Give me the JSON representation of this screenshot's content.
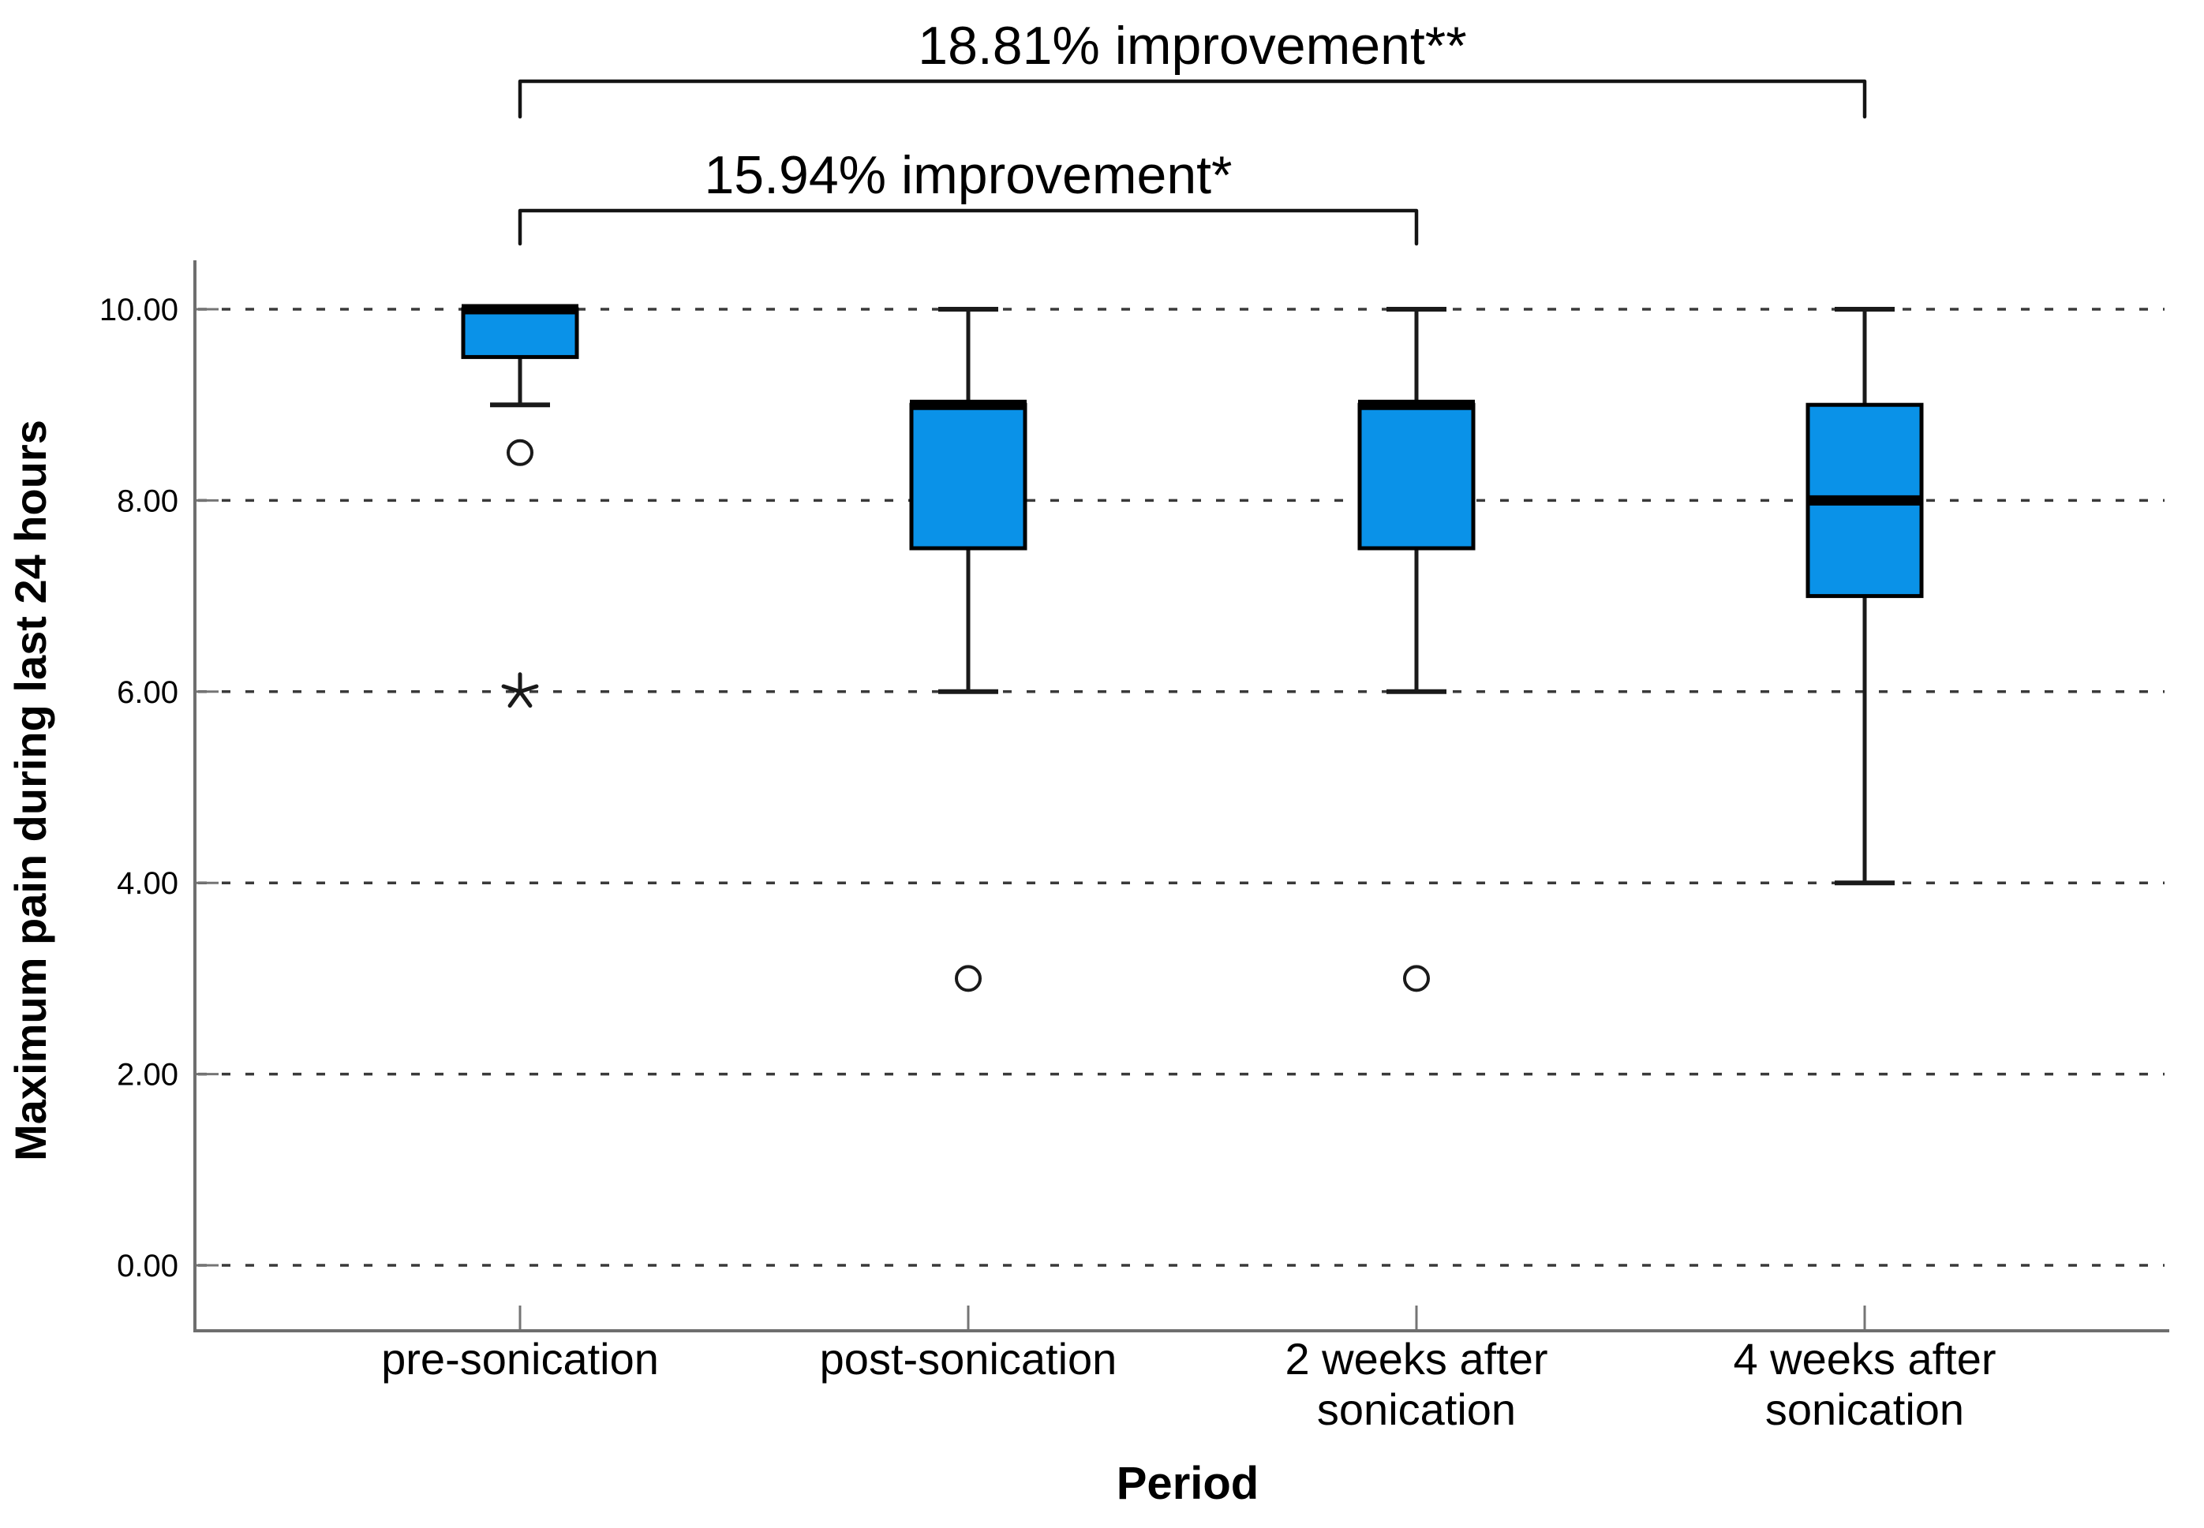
{
  "chart_data": {
    "type": "boxplot",
    "title": "",
    "xlabel": "Period",
    "ylabel": "Maximum pain during last 24 hours",
    "ylim": [
      -0.7,
      10.9
    ],
    "yticks": [
      0,
      2,
      4,
      6,
      8,
      10
    ],
    "ytick_labels": [
      "0.00",
      "2.00",
      "4.00",
      "6.00",
      "8.00",
      "10.00"
    ],
    "grid": {
      "horizontal_dashed_at_yticks": true,
      "vertical": false
    },
    "legend": null,
    "categories": [
      {
        "id": "pre-sonication",
        "label_lines": [
          "pre-sonication"
        ]
      },
      {
        "id": "post-sonication",
        "label_lines": [
          "post-sonication"
        ]
      },
      {
        "id": "2-weeks-after-sonication",
        "label_lines": [
          "2 weeks after",
          "sonication"
        ]
      },
      {
        "id": "4-weeks-after-sonication",
        "label_lines": [
          "4 weeks after",
          "sonication"
        ]
      }
    ],
    "series": [
      {
        "category": "pre-sonication",
        "q1": 9.5,
        "median": 10,
        "q3": 10,
        "whisker_low": 9,
        "whisker_high": 10,
        "outliers": [
          8.5
        ],
        "extremes": [
          6
        ]
      },
      {
        "category": "post-sonication",
        "q1": 7.5,
        "median": 9,
        "q3": 9,
        "whisker_low": 6,
        "whisker_high": 10,
        "outliers": [
          3
        ],
        "extremes": []
      },
      {
        "category": "2-weeks-after-sonication",
        "q1": 7.5,
        "median": 9,
        "q3": 9,
        "whisker_low": 6,
        "whisker_high": 10,
        "outliers": [
          3
        ],
        "extremes": []
      },
      {
        "category": "4-weeks-after-sonication",
        "q1": 7,
        "median": 8,
        "q3": 9,
        "whisker_low": 4,
        "whisker_high": 10,
        "outliers": [],
        "extremes": []
      }
    ],
    "annotations": [
      {
        "label": "18.81% improvement**",
        "from_category": 0,
        "to_category": 3
      },
      {
        "label": "15.94% improvement*",
        "from_category": 0,
        "to_category": 2
      }
    ],
    "colors": {
      "box_fill": "#0a92e8",
      "box_stroke": "#000000",
      "median": "#000000",
      "whisker": "#1a1a1a",
      "outlier": "#1a1a1a",
      "grid": "#3a3a3a",
      "axis": "#6e6e6e",
      "tick": "#757575",
      "bracket": "#141414",
      "text": "#000000",
      "background": "#ffffff"
    }
  }
}
